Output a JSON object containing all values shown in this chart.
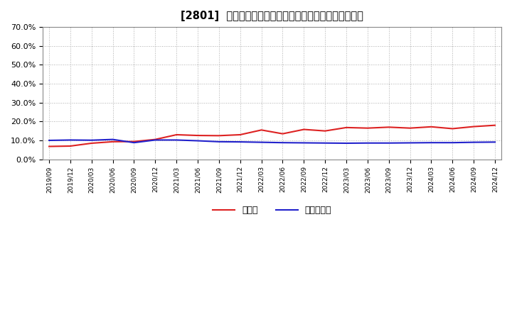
{
  "title": "[2801]  現預金、有利子負債の総資産に対する比率の推移",
  "x_labels": [
    "2019/09",
    "2019/12",
    "2020/03",
    "2020/06",
    "2020/09",
    "2020/12",
    "2021/03",
    "2021/06",
    "2021/09",
    "2021/12",
    "2022/03",
    "2022/06",
    "2022/09",
    "2022/12",
    "2023/03",
    "2023/06",
    "2023/09",
    "2023/12",
    "2024/03",
    "2024/06",
    "2024/09",
    "2024/12"
  ],
  "cash_values": [
    6.8,
    7.0,
    8.5,
    9.3,
    9.4,
    10.5,
    13.0,
    12.6,
    12.5,
    13.0,
    15.5,
    13.5,
    15.8,
    15.0,
    16.8,
    16.5,
    17.0,
    16.5,
    17.2,
    16.2,
    17.3,
    18.0
  ],
  "debt_values": [
    10.0,
    10.2,
    10.1,
    10.5,
    8.8,
    10.2,
    10.2,
    9.8,
    9.3,
    9.2,
    9.0,
    8.8,
    8.7,
    8.6,
    8.5,
    8.6,
    8.6,
    8.7,
    8.8,
    8.8,
    9.0,
    9.1
  ],
  "cash_color": "#dd2222",
  "debt_color": "#2222cc",
  "ylim": [
    0,
    70
  ],
  "yticks": [
    0,
    10,
    20,
    30,
    40,
    50,
    60,
    70
  ],
  "ytick_labels": [
    "0.0%",
    "10.0%",
    "20.0%",
    "30.0%",
    "40.0%",
    "50.0%",
    "60.0%",
    "70.0%"
  ],
  "legend_cash": "現預金",
  "legend_debt": "有利子負債",
  "bg_color": "#ffffff",
  "plot_bg_color": "#ffffff",
  "grid_color": "#999999",
  "line_width": 1.5
}
